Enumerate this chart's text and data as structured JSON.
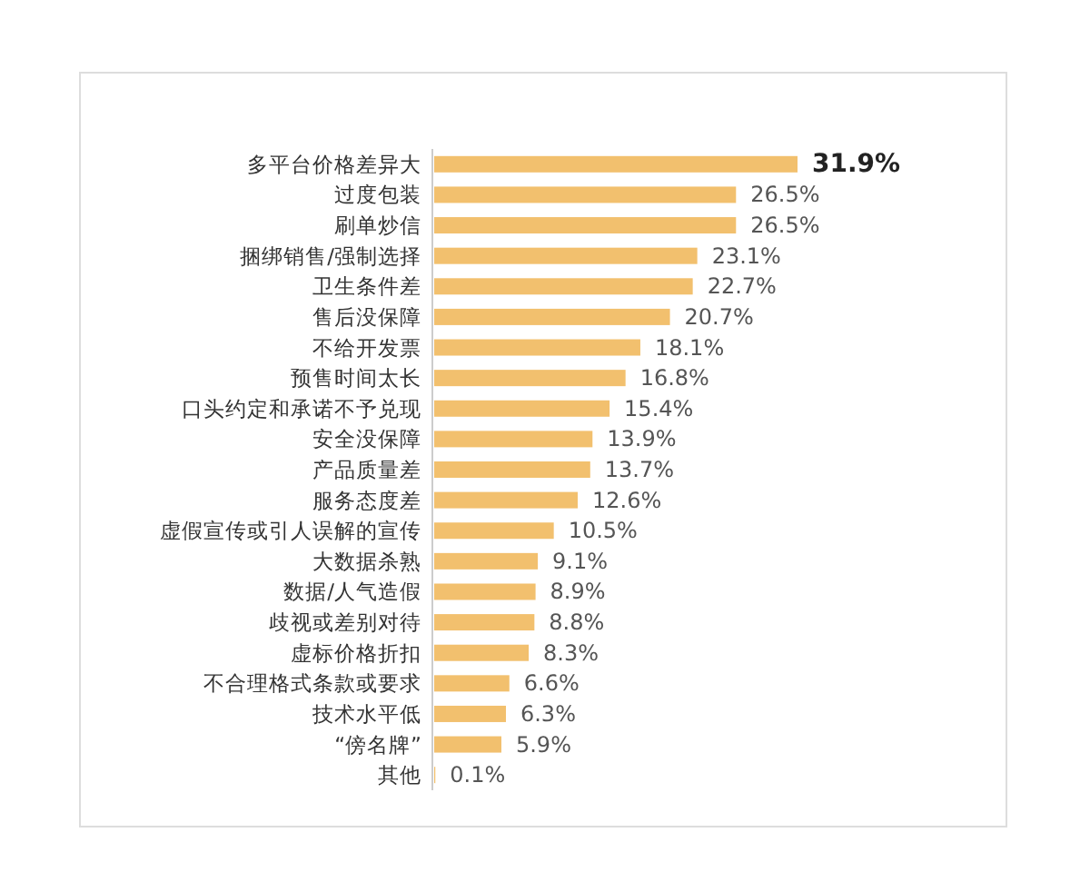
{
  "chart_data": {
    "type": "bar",
    "orientation": "horizontal",
    "color": "#f2c06e",
    "categories": [
      "多平台价格差异大",
      "过度包装",
      "刷单炒信",
      "捆绑销售/强制选择",
      "卫生条件差",
      "售后没保障",
      "不给开发票",
      "预售时间太长",
      "口头约定和承诺不予兑现",
      "安全没保障",
      "产品质量差",
      "服务态度差",
      "虚假宣传或引人误解的宣传",
      "大数据杀熟",
      "数据/人气造假",
      "歧视或差别对待",
      "虚标价格折扣",
      "不合理格式条款或要求",
      "技术水平低",
      "“傍名牌”",
      "其他"
    ],
    "values": [
      31.9,
      26.5,
      26.5,
      23.1,
      22.7,
      20.7,
      18.1,
      16.8,
      15.4,
      13.9,
      13.7,
      12.6,
      10.5,
      9.1,
      8.9,
      8.8,
      8.3,
      6.6,
      6.3,
      5.9,
      0.1
    ],
    "value_labels": [
      "31.9%",
      "26.5%",
      "26.5%",
      "23.1%",
      "22.7%",
      "20.7%",
      "18.1%",
      "16.8%",
      "15.4%",
      "13.9%",
      "13.7%",
      "12.6%",
      "10.5%",
      "9.1%",
      "8.9%",
      "8.8%",
      "8.3%",
      "6.6%",
      "6.3%",
      "5.9%",
      "0.1%"
    ]
  }
}
